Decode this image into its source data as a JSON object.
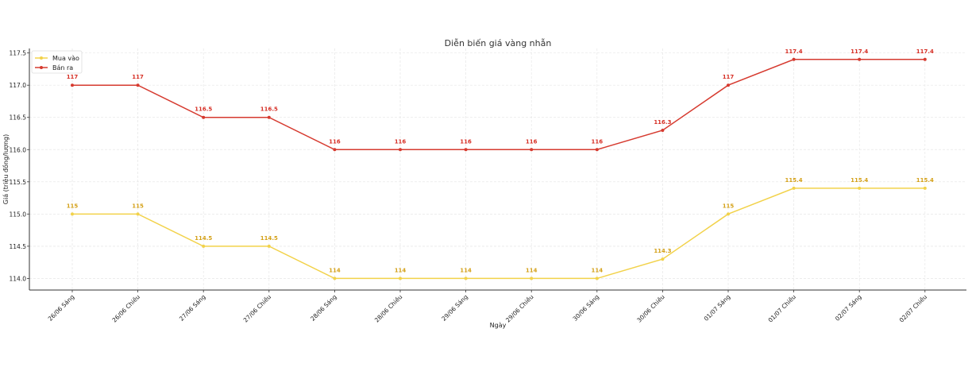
{
  "chart_data": {
    "type": "line",
    "title": "Diễn biến giá vàng nhẫn",
    "xlabel": "Ngày",
    "ylabel": "Giá (triệu đồng/lượng)",
    "categories": [
      "26/06 Sáng",
      "26/06 Chiều",
      "27/06 Sáng",
      "27/06 Chiều",
      "28/06 Sáng",
      "28/06 Chiều",
      "29/06 Sáng",
      "29/06 Chiều",
      "30/06 Sáng",
      "30/06 Chiều",
      "01/07 Sáng",
      "01/07 Chiều",
      "02/07 Sáng",
      "02/07 Chiều"
    ],
    "ylim": [
      113.82,
      117.57
    ],
    "yticks": [
      "114.0",
      "114.5",
      "115.0",
      "115.5",
      "116.0",
      "116.5",
      "117.0",
      "117.5"
    ],
    "grid": true,
    "legend_position": "top-left",
    "series": [
      {
        "name": "Mua vào",
        "color": "#f2d24a",
        "label_color": "#d4a017",
        "values": [
          115,
          115,
          114.5,
          114.5,
          114,
          114,
          114,
          114,
          114,
          114.3,
          115,
          115.4,
          115.4,
          115.4
        ],
        "labels": [
          "115",
          "115",
          "114.5",
          "114.5",
          "114",
          "114",
          "114",
          "114",
          "114",
          "114.3",
          "115",
          "115.4",
          "115.4",
          "115.4"
        ]
      },
      {
        "name": "Bán ra",
        "color": "#d63a2f",
        "label_color": "#d62f25",
        "values": [
          117,
          117,
          116.5,
          116.5,
          116,
          116,
          116,
          116,
          116,
          116.3,
          117,
          117.4,
          117.4,
          117.4
        ],
        "labels": [
          "117",
          "117",
          "116.5",
          "116.5",
          "116",
          "116",
          "116",
          "116",
          "116",
          "116.3",
          "117",
          "117.4",
          "117.4",
          "117.4"
        ]
      }
    ]
  }
}
